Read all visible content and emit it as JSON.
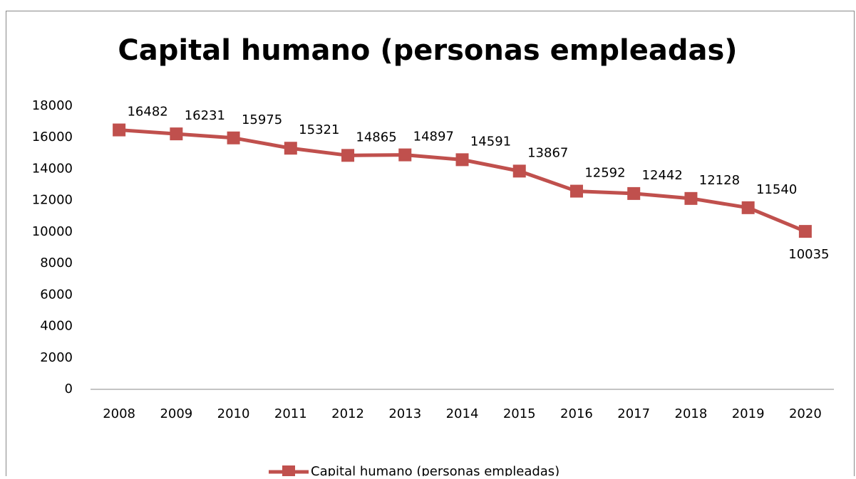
{
  "chart_data": {
    "type": "line",
    "title": "Capital humano (personas empleadas)",
    "categories": [
      "2008",
      "2009",
      "2010",
      "2011",
      "2012",
      "2013",
      "2014",
      "2015",
      "2016",
      "2017",
      "2018",
      "2019",
      "2020"
    ],
    "series": [
      {
        "name": "Capital humano (personas empleadas)",
        "color": "#c0504d",
        "values": [
          16482,
          16231,
          15975,
          15321,
          14865,
          14897,
          14591,
          13867,
          12592,
          12442,
          12128,
          11540,
          10035
        ]
      }
    ],
    "ylim": [
      0,
      18000
    ],
    "yticks": [
      0,
      2000,
      4000,
      6000,
      8000,
      10000,
      12000,
      14000,
      16000,
      18000
    ],
    "grid": false,
    "legend": "bottom"
  }
}
